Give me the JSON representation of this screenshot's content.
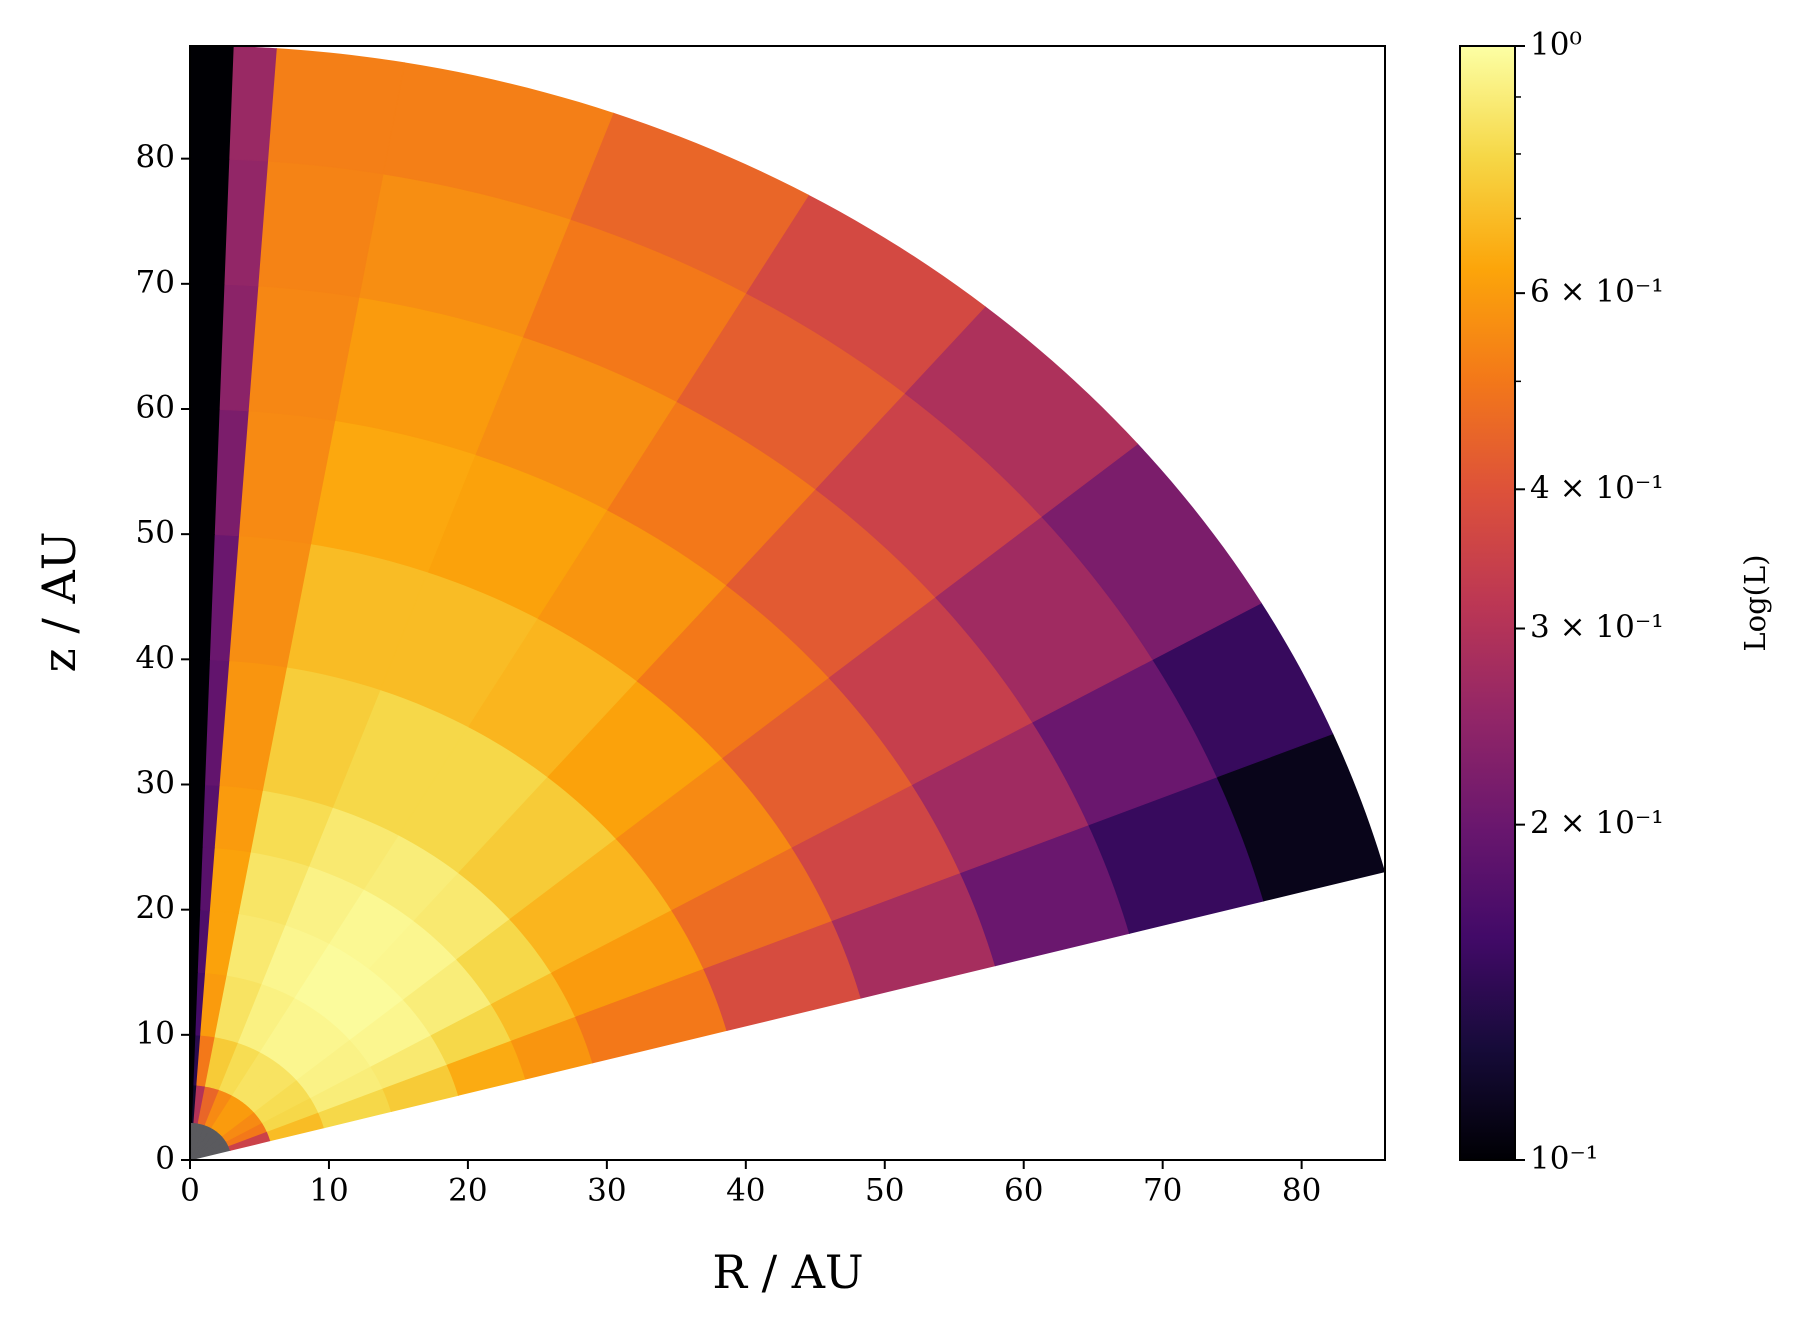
{
  "chart_data": {
    "type": "polar-heatmap",
    "xlabel": "R / AU",
    "ylabel": "z / AU",
    "colorbar_label": "Log(L)",
    "colormap": "inferno",
    "color_scale": "log",
    "null_color": "#5a5a5e",
    "xlim": [
      0,
      86
    ],
    "ylim": [
      0,
      89
    ],
    "xticks": [
      0,
      10,
      20,
      30,
      40,
      50,
      60,
      70,
      80
    ],
    "yticks": [
      0,
      10,
      20,
      30,
      40,
      50,
      60,
      70,
      80
    ],
    "clim": [
      0.1,
      1
    ],
    "cticks": [
      {
        "value": 0.1,
        "label": "10⁻¹"
      },
      {
        "value": 0.2,
        "label": "2 × 10⁻¹"
      },
      {
        "value": 0.3,
        "label": "3 × 10⁻¹"
      },
      {
        "value": 0.4,
        "label": "4 × 10⁻¹"
      },
      {
        "value": 0.6,
        "label": "6 × 10⁻¹"
      },
      {
        "value": 1,
        "label": "10⁰"
      }
    ],
    "cminor_ticks": [
      0.5,
      0.7,
      0.8,
      0.9
    ],
    "r_edges": [
      0,
      3,
      6,
      10,
      15,
      20,
      25,
      30,
      40,
      50,
      60,
      70,
      80,
      89
    ],
    "theta_edges": [
      15,
      22.5,
      30,
      40,
      50,
      60,
      70,
      80,
      86,
      88,
      90
    ],
    "values": [
      [
        null,
        0.35,
        0.7,
        0.8,
        0.75,
        0.65,
        0.58,
        0.5,
        0.38,
        0.28,
        0.2,
        0.15,
        0.11
      ],
      [
        null,
        0.5,
        0.8,
        0.9,
        0.88,
        0.8,
        0.7,
        0.6,
        0.47,
        0.36,
        0.27,
        0.2,
        0.15
      ],
      [
        null,
        0.55,
        0.82,
        0.93,
        0.95,
        0.9,
        0.8,
        0.68,
        0.55,
        0.43,
        0.34,
        0.27,
        0.22
      ],
      [
        null,
        0.6,
        0.85,
        0.95,
        0.98,
        0.95,
        0.88,
        0.75,
        0.62,
        0.5,
        0.42,
        0.35,
        0.29
      ],
      [
        null,
        0.6,
        0.85,
        0.95,
        0.98,
        0.96,
        0.9,
        0.8,
        0.68,
        0.58,
        0.5,
        0.43,
        0.37
      ],
      [
        null,
        0.55,
        0.82,
        0.92,
        0.95,
        0.93,
        0.88,
        0.8,
        0.7,
        0.62,
        0.56,
        0.5,
        0.45
      ],
      [
        null,
        0.45,
        0.75,
        0.85,
        0.88,
        0.86,
        0.82,
        0.76,
        0.7,
        0.64,
        0.6,
        0.56,
        0.52
      ],
      [
        null,
        0.3,
        0.5,
        0.6,
        0.62,
        0.62,
        0.6,
        0.58,
        0.56,
        0.55,
        0.54,
        0.53,
        0.52
      ],
      [
        null,
        0.12,
        0.14,
        0.16,
        0.17,
        0.18,
        0.18,
        0.19,
        0.2,
        0.22,
        0.24,
        0.25,
        0.26
      ],
      [
        null,
        0.1,
        0.1,
        0.1,
        0.1,
        0.1,
        0.1,
        0.1,
        0.1,
        0.1,
        0.1,
        0.1,
        0.1
      ]
    ]
  }
}
